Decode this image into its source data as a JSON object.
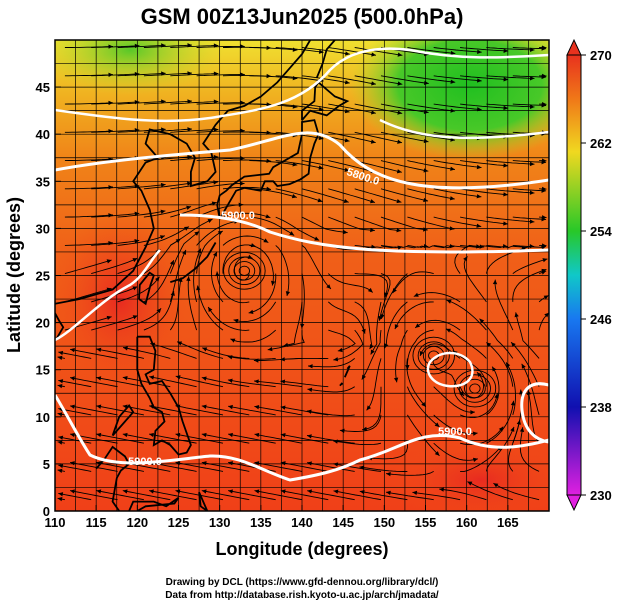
{
  "title": "GSM 00Z13Jun2025 (500.0hPa)",
  "x_axis": {
    "label": "Longitude (degrees)",
    "range": [
      110,
      170
    ],
    "ticks": [
      "110",
      "115",
      "120",
      "125",
      "130",
      "135",
      "140",
      "145",
      "150",
      "155",
      "160",
      "165"
    ]
  },
  "y_axis": {
    "label": "Latitude  (degrees)",
    "range": [
      0,
      50
    ],
    "ticks": [
      "0",
      "5",
      "10",
      "15",
      "20",
      "25",
      "30",
      "35",
      "40",
      "45"
    ]
  },
  "colorbar": {
    "range": [
      230,
      270
    ],
    "ticks": [
      "230",
      "238",
      "246",
      "254",
      "262",
      "270"
    ]
  },
  "contour_labels": [
    "5900.0",
    "5900.0",
    "5900.0",
    "5800.0"
  ],
  "credits": {
    "line1": "Drawing by DCL (https://www.gfd-dennou.org/library/dcl/)",
    "line2": "Data from http://database.rish.kyoto-u.ac.jp/arch/jmadata/"
  },
  "colors": {
    "warm_red": "#e8321e",
    "orange": "#f07818",
    "yellow": "#f0d820",
    "green": "#28c828",
    "cyan": "#10c8c8",
    "blue": "#1878f0",
    "navy": "#1010b0",
    "magenta": "#e020e0",
    "contour": "#ffffff",
    "coast": "#000000"
  },
  "map_data": {
    "type": "heatmap",
    "quantity": "temperature",
    "contour_field": "geopotential height",
    "overlays": [
      "streamlines",
      "5900 m contour",
      "5800 m contour",
      "coastlines",
      "1 degree grid"
    ],
    "vortices_lonlat": [
      [
        133,
        25.5
      ],
      [
        156,
        16.5
      ],
      [
        161,
        13
      ]
    ]
  }
}
